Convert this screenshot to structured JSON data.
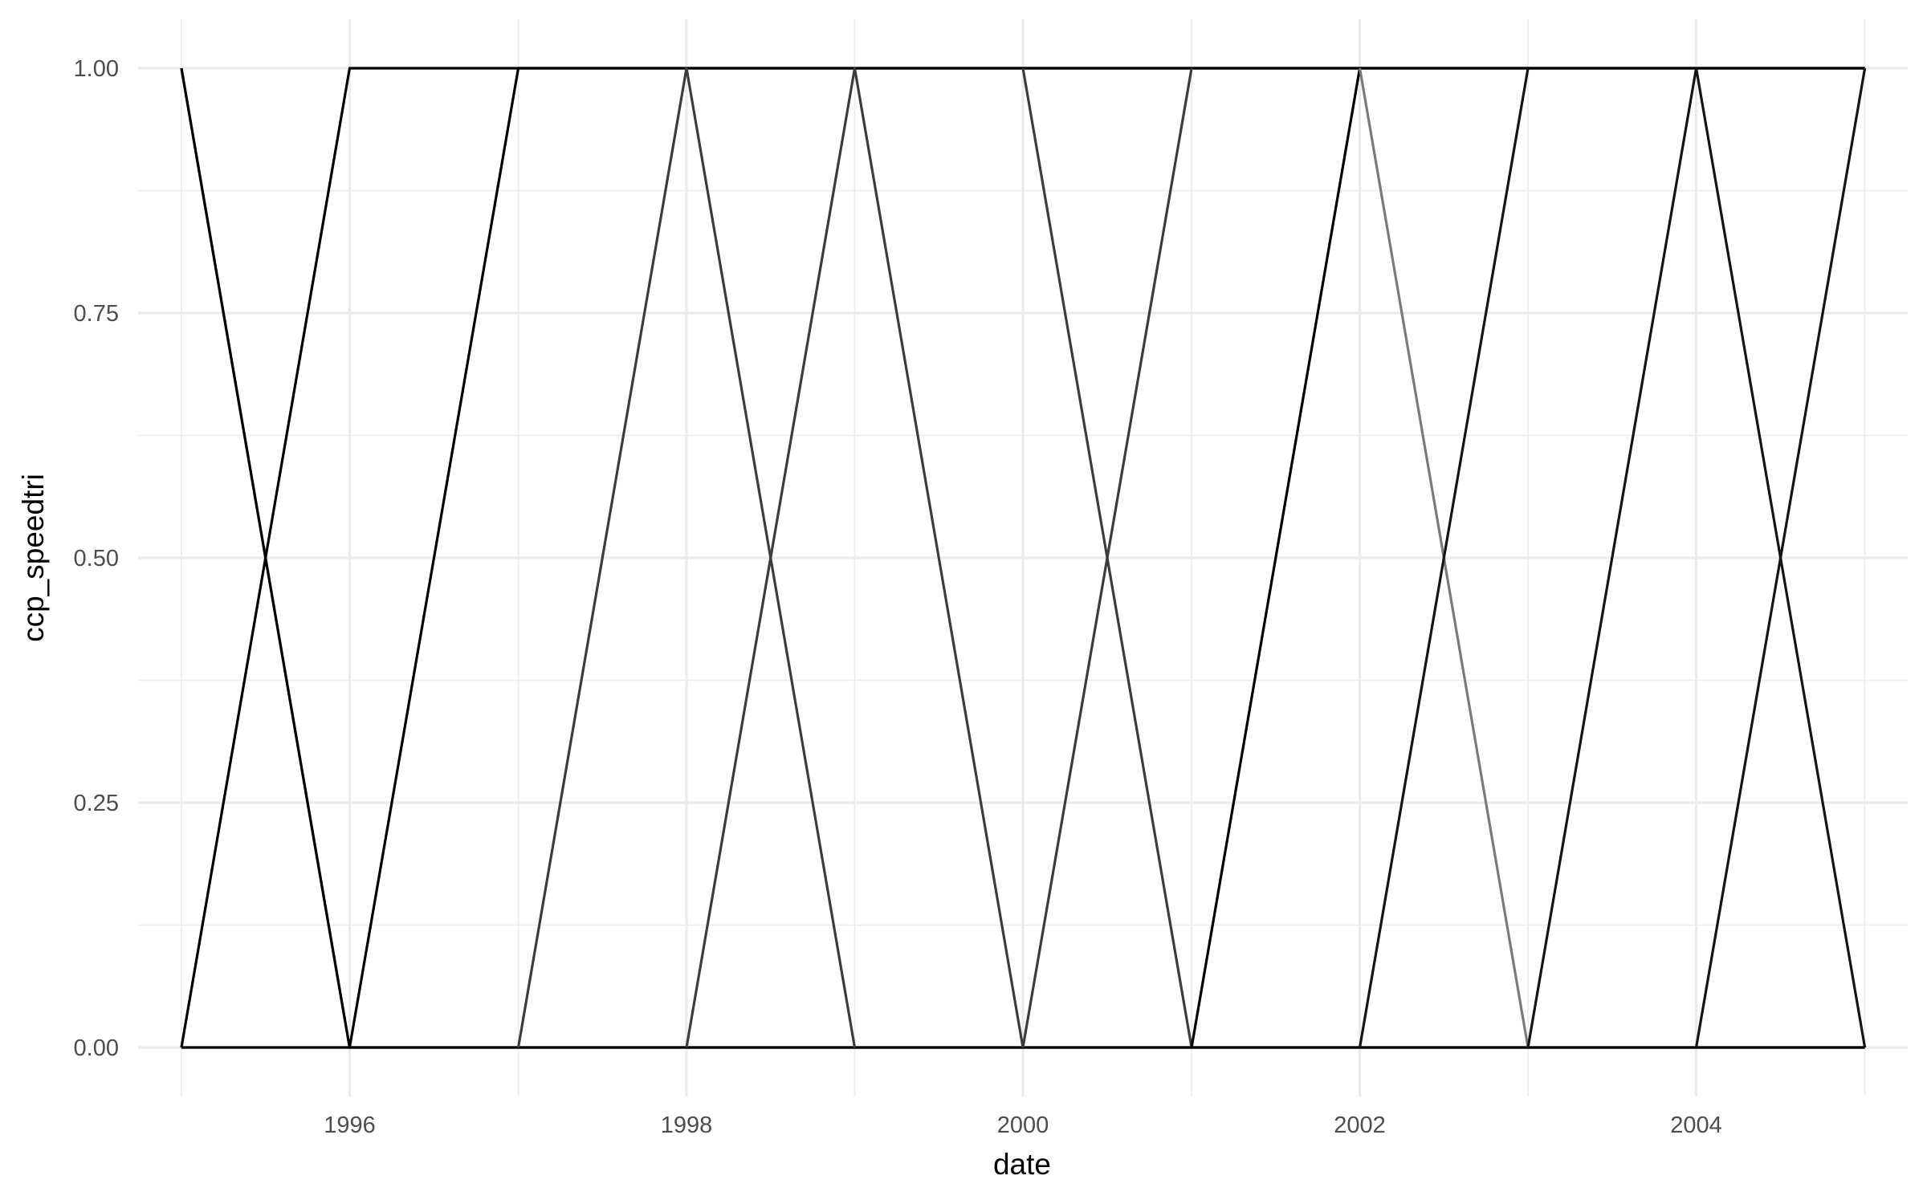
{
  "chart_data": {
    "type": "line",
    "xlabel": "date",
    "ylabel": "ccp_speedtri",
    "x_axis_type": "date",
    "xlim": [
      "1994-09-29",
      "2005-04-04"
    ],
    "ylim": [
      -0.05,
      1.05
    ],
    "x_tick_labels": [
      "1996",
      "1998",
      "2000",
      "2002",
      "2004"
    ],
    "y_ticks": [
      0,
      0.25,
      0.5,
      0.75,
      1
    ],
    "y_tick_labels": [
      "0.00",
      "0.25",
      "0.50",
      "0.75",
      "1.00"
    ],
    "grid": true,
    "legend": "none",
    "colors": {
      "grid": "#ebebeb",
      "background": "#ffffff"
    },
    "series": [
      {
        "color": "#7a7a7a",
        "points": [
          [
            "1995-01-01",
            1
          ],
          [
            "1996-01-01",
            0
          ],
          [
            "2005-01-01",
            0
          ]
        ]
      },
      {
        "color": "#000000",
        "points": [
          [
            "1995-01-01",
            0
          ],
          [
            "1996-01-01",
            1
          ],
          [
            "2005-01-01",
            1
          ]
        ]
      },
      {
        "color": "#000000",
        "points": [
          [
            "1995-01-01",
            0
          ],
          [
            "1996-01-01",
            0
          ],
          [
            "1997-01-01",
            1
          ],
          [
            "2005-01-01",
            1
          ]
        ]
      },
      {
        "color": "#000000",
        "points": [
          [
            "1995-01-01",
            1
          ],
          [
            "1996-01-01",
            0
          ],
          [
            "1997-01-01",
            0
          ],
          [
            "2005-01-01",
            0
          ]
        ]
      },
      {
        "color": "#3c3c3c",
        "points": [
          [
            "1997-01-01",
            0
          ],
          [
            "1998-01-01",
            1
          ],
          [
            "1999-01-01",
            0
          ]
        ]
      },
      {
        "color": "#3c3c3c",
        "points": [
          [
            "1998-01-01",
            0
          ],
          [
            "1999-01-01",
            1
          ],
          [
            "2000-01-01",
            0
          ]
        ]
      },
      {
        "color": "#3c3c3c",
        "points": [
          [
            "2000-01-01",
            0
          ],
          [
            "2001-01-01",
            1
          ]
        ]
      },
      {
        "color": "#3c3c3c",
        "points": [
          [
            "2000-01-01",
            1
          ],
          [
            "2001-01-01",
            0
          ]
        ]
      },
      {
        "color": "#000000",
        "points": [
          [
            "2001-01-01",
            0
          ],
          [
            "2002-01-01",
            1
          ]
        ]
      },
      {
        "color": "#7a7a7a",
        "points": [
          [
            "2002-01-01",
            1
          ],
          [
            "2003-01-01",
            0
          ]
        ]
      },
      {
        "color": "#141414",
        "points": [
          [
            "2002-01-01",
            0
          ],
          [
            "2003-01-01",
            1
          ]
        ]
      },
      {
        "color": "#141414",
        "points": [
          [
            "2003-01-01",
            0
          ],
          [
            "2004-01-01",
            1
          ],
          [
            "2005-01-01",
            0
          ]
        ]
      },
      {
        "color": "#141414",
        "points": [
          [
            "2004-01-01",
            0
          ],
          [
            "2005-01-01",
            1
          ]
        ]
      }
    ]
  }
}
